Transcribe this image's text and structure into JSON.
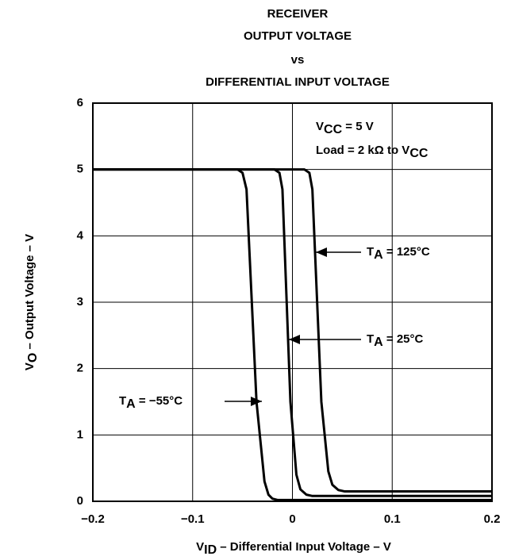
{
  "chart_data": {
    "type": "line",
    "title": [
      "RECEIVER",
      "OUTPUT VOLTAGE",
      "vs",
      "DIFFERENTIAL INPUT VOLTAGE"
    ],
    "xlabel": [
      "V",
      "ID",
      " – Differential Input Voltage – V"
    ],
    "ylabel": [
      "V",
      "O",
      " – Output Voltage – V"
    ],
    "annotations": [
      [
        "V",
        "CC",
        " = 5 V"
      ],
      [
        "Load = 2 kΩ to V",
        "CC"
      ]
    ],
    "xlim": [
      -0.2,
      0.2
    ],
    "ylim": [
      0,
      6
    ],
    "xticks": [
      {
        "value": -0.2,
        "label": "−0.2"
      },
      {
        "value": -0.1,
        "label": "−0.1"
      },
      0,
      0.1,
      0.2
    ],
    "yticks": [
      0,
      1,
      2,
      3,
      4,
      5,
      6
    ],
    "grid": true,
    "series": [
      {
        "name": [
          "T",
          "A",
          " = 125°C"
        ],
        "color": "#000000",
        "x": [
          -0.2,
          0.012,
          0.017,
          0.02,
          0.029,
          0.036,
          0.04,
          0.046,
          0.052,
          0.2
        ],
        "values": [
          5,
          5,
          4.95,
          4.7,
          1.5,
          0.45,
          0.25,
          0.17,
          0.15,
          0.15
        ]
      },
      {
        "name": [
          "T",
          "A",
          " = 25°C"
        ],
        "color": "#000000",
        "x": [
          -0.2,
          -0.018,
          -0.013,
          -0.01,
          -0.002,
          0.004,
          0.008,
          0.014,
          0.02,
          0.2
        ],
        "values": [
          5,
          5,
          4.95,
          4.7,
          1.5,
          0.4,
          0.18,
          0.1,
          0.08,
          0.08
        ]
      },
      {
        "name": [
          "T",
          "A",
          " = −55°C"
        ],
        "color": "#000000",
        "x": [
          -0.2,
          -0.055,
          -0.05,
          -0.046,
          -0.036,
          -0.028,
          -0.024,
          -0.02,
          -0.015,
          0.2
        ],
        "values": [
          5,
          5,
          4.95,
          4.7,
          1.5,
          0.3,
          0.1,
          0.04,
          0.02,
          0.02
        ]
      }
    ]
  }
}
